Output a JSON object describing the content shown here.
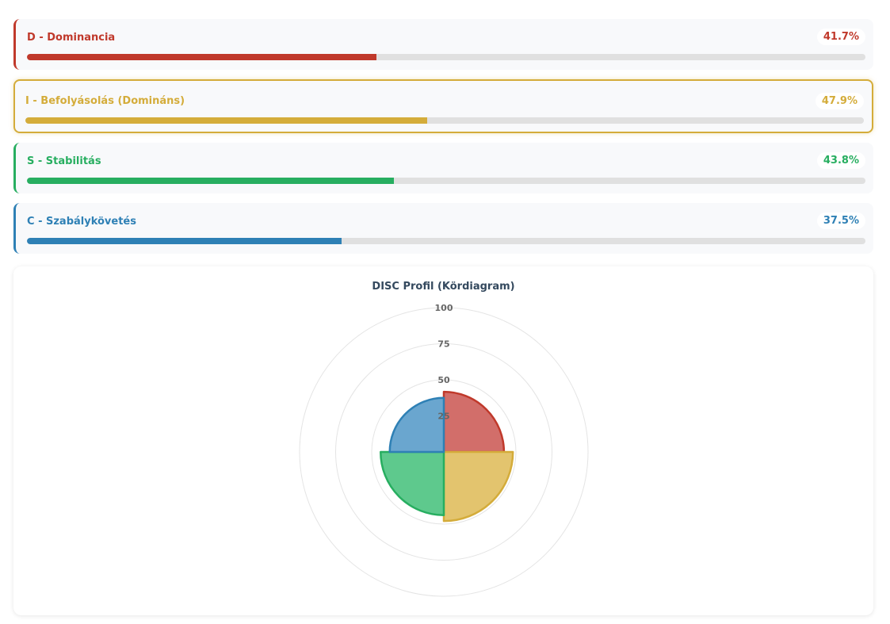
{
  "cards": [
    {
      "letter": "D",
      "label": "D - Dominancia",
      "percent_text": "41.7%",
      "value": 41.7,
      "color": "#c0392b",
      "dominant": false
    },
    {
      "letter": "I",
      "label": "I - Befolyásolás (Domináns)",
      "percent_text": "47.9%",
      "value": 47.9,
      "color": "#d4ac3a",
      "dominant": true
    },
    {
      "letter": "S",
      "label": "S - Stabilitás",
      "percent_text": "43.8%",
      "value": 43.8,
      "color": "#27ae60",
      "dominant": false
    },
    {
      "letter": "C",
      "label": "C - Szabálykövetés",
      "percent_text": "37.5%",
      "value": 37.5,
      "color": "#2e80b5",
      "dominant": false
    }
  ],
  "chart_data": {
    "type": "polarArea",
    "title": "DISC Profil (Kördiagram)",
    "categories": [
      "D",
      "I",
      "S",
      "C"
    ],
    "values": [
      41.7,
      47.9,
      43.8,
      37.5
    ],
    "rlim": [
      0,
      100
    ],
    "ticks": [
      "25",
      "50",
      "75",
      "100"
    ],
    "tick_values": [
      25,
      50,
      75,
      100
    ],
    "colors": [
      "#c0392b",
      "#d4ac3a",
      "#27ae60",
      "#2e80b5"
    ],
    "fill_colors": [
      "#d26e6a",
      "#e3c46e",
      "#5ec98d",
      "#6aa6cf"
    ],
    "grid": true,
    "legend": "none"
  }
}
